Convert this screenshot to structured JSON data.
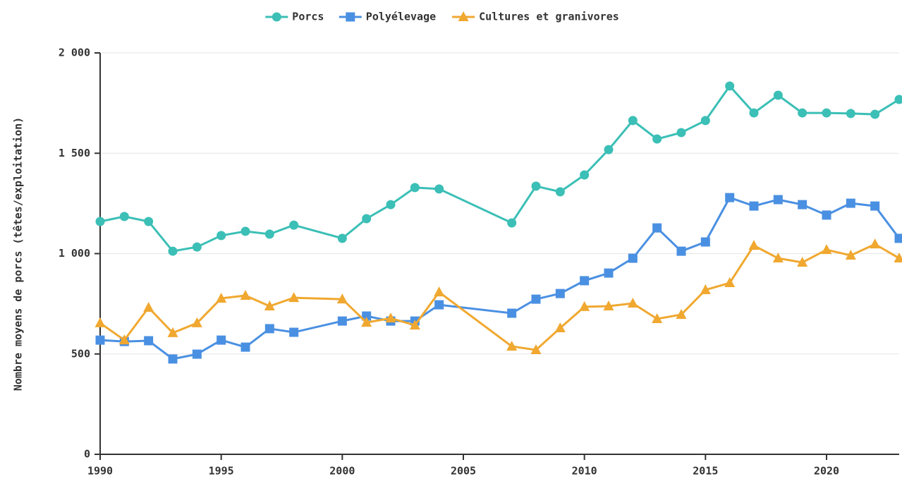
{
  "chart_data": {
    "type": "line",
    "y_label": "Nombre moyens de porcs (têtes/exploitation)",
    "x": [
      1990,
      1991,
      1992,
      1993,
      1994,
      1995,
      1996,
      1997,
      1998,
      2000,
      2001,
      2002,
      2003,
      2004,
      2007,
      2008,
      2009,
      2010,
      2011,
      2012,
      2013,
      2014,
      2015,
      2016,
      2017,
      2018,
      2019,
      2020,
      2021,
      2022,
      2023
    ],
    "series": [
      {
        "name": "Porcs",
        "color": "#3bbfb6",
        "marker": "circle",
        "values": [
          1160,
          1185,
          1160,
          1012,
          1033,
          1090,
          1111,
          1097,
          1142,
          1076,
          1174,
          1244,
          1329,
          1322,
          1153,
          1336,
          1308,
          1392,
          1518,
          1663,
          1571,
          1603,
          1663,
          1835,
          1701,
          1789,
          1701,
          1701,
          1698,
          1694,
          1768
        ]
      },
      {
        "name": "Polyélevage",
        "color": "#4a90e2",
        "marker": "square",
        "values": [
          569,
          562,
          566,
          475,
          499,
          569,
          534,
          626,
          608,
          664,
          689,
          664,
          664,
          745,
          703,
          773,
          801,
          865,
          903,
          977,
          1128,
          1012,
          1058,
          1279,
          1237,
          1269,
          1244,
          1192,
          1251,
          1237,
          1076
        ]
      },
      {
        "name": "Cultures et granivores",
        "color": "#f0a830",
        "marker": "triangle",
        "values": [
          654,
          569,
          731,
          605,
          654,
          777,
          791,
          738,
          780,
          773,
          657,
          678,
          643,
          808,
          538,
          520,
          629,
          735,
          738,
          752,
          675,
          696,
          819,
          854,
          1040,
          977,
          956,
          1019,
          991,
          1047,
          977
        ]
      }
    ],
    "xlim": [
      1990,
      2023
    ],
    "xticks": [
      1990,
      1995,
      2000,
      2005,
      2010,
      2015,
      2020
    ],
    "ylim": [
      0,
      2000
    ],
    "yticks": [
      0,
      500,
      {
        "value": 1000,
        "label": "1 000"
      },
      {
        "value": 1500,
        "label": "1 500"
      },
      {
        "value": 2000,
        "label": "2 000"
      }
    ],
    "grid": true,
    "legend": "top"
  }
}
